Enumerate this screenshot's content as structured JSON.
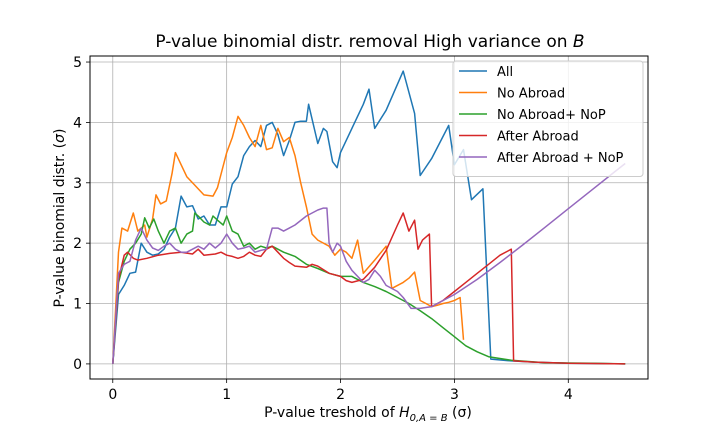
{
  "chart_data": {
    "type": "line",
    "title": "P-value binomial distr. removal High variance on ",
    "title_var": "B",
    "xlabel_text": "P-value treshold of ",
    "xlabel_math": "H",
    "xlabel_sub": "0,A = B",
    "xlabel_unit": " (σ)",
    "ylabel_text": "P-value binomial distr. (",
    "ylabel_math": "σ",
    "ylabel_close": ")",
    "xlim": [
      -0.2,
      4.7
    ],
    "ylim": [
      -0.25,
      5.1
    ],
    "x_ticks": [
      {
        "value": 0,
        "label": "0"
      },
      {
        "value": 1,
        "label": "1"
      },
      {
        "value": 2,
        "label": "2"
      },
      {
        "value": 3,
        "label": "3"
      },
      {
        "value": 4,
        "label": "4"
      }
    ],
    "y_ticks": [
      {
        "value": 0,
        "label": "0"
      },
      {
        "value": 1,
        "label": "1"
      },
      {
        "value": 2,
        "label": "2"
      },
      {
        "value": 3,
        "label": "3"
      },
      {
        "value": 4,
        "label": "4"
      },
      {
        "value": 5,
        "label": "5"
      }
    ],
    "grid": true,
    "legend_position": "top-right",
    "series": [
      {
        "name": "All",
        "color": "#1f77b4",
        "points": [
          [
            0,
            0
          ],
          [
            0.05,
            1.15
          ],
          [
            0.1,
            1.3
          ],
          [
            0.15,
            1.5
          ],
          [
            0.2,
            1.52
          ],
          [
            0.25,
            2.0
          ],
          [
            0.3,
            1.85
          ],
          [
            0.35,
            1.8
          ],
          [
            0.4,
            1.82
          ],
          [
            0.45,
            1.9
          ],
          [
            0.5,
            2.1
          ],
          [
            0.55,
            2.25
          ],
          [
            0.6,
            2.78
          ],
          [
            0.65,
            2.6
          ],
          [
            0.7,
            2.62
          ],
          [
            0.75,
            2.4
          ],
          [
            0.8,
            2.45
          ],
          [
            0.85,
            2.3
          ],
          [
            0.9,
            2.3
          ],
          [
            0.95,
            2.6
          ],
          [
            1.0,
            2.6
          ],
          [
            1.05,
            2.98
          ],
          [
            1.1,
            3.1
          ],
          [
            1.15,
            3.45
          ],
          [
            1.2,
            3.6
          ],
          [
            1.25,
            3.7
          ],
          [
            1.3,
            3.6
          ],
          [
            1.35,
            3.95
          ],
          [
            1.4,
            4.0
          ],
          [
            1.45,
            3.8
          ],
          [
            1.5,
            3.45
          ],
          [
            1.55,
            3.7
          ],
          [
            1.6,
            4.0
          ],
          [
            1.65,
            4.02
          ],
          [
            1.7,
            4.02
          ],
          [
            1.72,
            4.3
          ],
          [
            1.8,
            3.65
          ],
          [
            1.85,
            3.9
          ],
          [
            1.88,
            3.85
          ],
          [
            1.93,
            3.35
          ],
          [
            1.97,
            3.25
          ],
          [
            2.0,
            3.5
          ],
          [
            2.1,
            3.9
          ],
          [
            2.2,
            4.3
          ],
          [
            2.25,
            4.55
          ],
          [
            2.3,
            3.9
          ],
          [
            2.4,
            4.2
          ],
          [
            2.55,
            4.85
          ],
          [
            2.65,
            4.15
          ],
          [
            2.7,
            3.12
          ],
          [
            2.8,
            3.4
          ],
          [
            2.95,
            3.95
          ],
          [
            3.0,
            3.3
          ],
          [
            3.08,
            3.55
          ],
          [
            3.15,
            2.72
          ],
          [
            3.25,
            2.9
          ],
          [
            3.32,
            0.08
          ],
          [
            3.5,
            0.05
          ],
          [
            3.7,
            0.03
          ],
          [
            4.0,
            0.01
          ],
          [
            4.5,
            0.0
          ]
        ]
      },
      {
        "name": "No Abroad",
        "color": "#ff7f0e",
        "points": [
          [
            0,
            0
          ],
          [
            0.05,
            1.85
          ],
          [
            0.08,
            2.25
          ],
          [
            0.13,
            2.2
          ],
          [
            0.18,
            2.5
          ],
          [
            0.22,
            2.2
          ],
          [
            0.28,
            2.3
          ],
          [
            0.3,
            2.1
          ],
          [
            0.35,
            2.4
          ],
          [
            0.38,
            2.8
          ],
          [
            0.42,
            2.65
          ],
          [
            0.47,
            2.7
          ],
          [
            0.52,
            3.15
          ],
          [
            0.55,
            3.5
          ],
          [
            0.6,
            3.3
          ],
          [
            0.65,
            3.1
          ],
          [
            0.7,
            3.0
          ],
          [
            0.8,
            2.8
          ],
          [
            0.88,
            2.78
          ],
          [
            0.92,
            2.92
          ],
          [
            1.0,
            3.5
          ],
          [
            1.05,
            3.75
          ],
          [
            1.1,
            4.1
          ],
          [
            1.15,
            3.95
          ],
          [
            1.2,
            3.75
          ],
          [
            1.25,
            3.6
          ],
          [
            1.3,
            3.95
          ],
          [
            1.35,
            3.55
          ],
          [
            1.4,
            3.58
          ],
          [
            1.45,
            3.9
          ],
          [
            1.5,
            3.68
          ],
          [
            1.55,
            3.75
          ],
          [
            1.6,
            3.45
          ],
          [
            1.65,
            3.0
          ],
          [
            1.7,
            2.6
          ],
          [
            1.75,
            2.15
          ],
          [
            1.8,
            2.05
          ],
          [
            1.9,
            1.95
          ],
          [
            1.95,
            1.8
          ],
          [
            2.0,
            1.9
          ],
          [
            2.05,
            1.85
          ],
          [
            2.1,
            1.75
          ],
          [
            2.15,
            2.05
          ],
          [
            2.2,
            1.5
          ],
          [
            2.3,
            1.72
          ],
          [
            2.4,
            1.95
          ],
          [
            2.45,
            1.25
          ],
          [
            2.5,
            1.3
          ],
          [
            2.55,
            1.35
          ],
          [
            2.6,
            1.42
          ],
          [
            2.65,
            1.52
          ],
          [
            2.7,
            1.05
          ],
          [
            2.75,
            1.0
          ],
          [
            2.8,
            0.95
          ],
          [
            2.85,
            0.97
          ],
          [
            2.9,
            1.0
          ],
          [
            2.95,
            1.02
          ],
          [
            3.0,
            1.05
          ],
          [
            3.05,
            1.1
          ],
          [
            3.08,
            0.4
          ]
        ]
      },
      {
        "name": "No Abroad+ NoP",
        "color": "#2ca02c",
        "points": [
          [
            0,
            0
          ],
          [
            0.05,
            1.35
          ],
          [
            0.1,
            1.7
          ],
          [
            0.15,
            1.9
          ],
          [
            0.2,
            2.0
          ],
          [
            0.25,
            2.15
          ],
          [
            0.28,
            2.42
          ],
          [
            0.32,
            2.25
          ],
          [
            0.36,
            2.4
          ],
          [
            0.4,
            2.2
          ],
          [
            0.45,
            2.0
          ],
          [
            0.5,
            2.2
          ],
          [
            0.55,
            2.25
          ],
          [
            0.6,
            2.0
          ],
          [
            0.65,
            2.15
          ],
          [
            0.7,
            2.2
          ],
          [
            0.72,
            2.5
          ],
          [
            0.75,
            2.45
          ],
          [
            0.8,
            2.35
          ],
          [
            0.85,
            2.3
          ],
          [
            0.88,
            2.45
          ],
          [
            0.92,
            2.38
          ],
          [
            0.97,
            2.3
          ],
          [
            1.0,
            2.45
          ],
          [
            1.05,
            2.2
          ],
          [
            1.1,
            2.15
          ],
          [
            1.15,
            1.95
          ],
          [
            1.2,
            2.0
          ],
          [
            1.25,
            1.9
          ],
          [
            1.3,
            1.95
          ],
          [
            1.35,
            1.92
          ],
          [
            1.4,
            1.95
          ],
          [
            1.5,
            1.85
          ],
          [
            1.6,
            1.78
          ],
          [
            1.7,
            1.65
          ],
          [
            1.8,
            1.58
          ],
          [
            1.9,
            1.5
          ],
          [
            2.0,
            1.45
          ],
          [
            2.1,
            1.45
          ],
          [
            2.2,
            1.35
          ],
          [
            2.3,
            1.28
          ],
          [
            2.4,
            1.2
          ],
          [
            2.5,
            1.1
          ],
          [
            2.6,
            1.0
          ],
          [
            2.7,
            0.88
          ],
          [
            2.8,
            0.75
          ],
          [
            2.9,
            0.6
          ],
          [
            3.0,
            0.45
          ],
          [
            3.1,
            0.3
          ],
          [
            3.2,
            0.2
          ],
          [
            3.3,
            0.12
          ],
          [
            3.5,
            0.06
          ],
          [
            3.8,
            0.02
          ],
          [
            4.2,
            0.01
          ],
          [
            4.5,
            0.0
          ]
        ]
      },
      {
        "name": "After Abroad",
        "color": "#d62728",
        "points": [
          [
            0,
            0
          ],
          [
            0.05,
            1.4
          ],
          [
            0.1,
            1.8
          ],
          [
            0.13,
            1.85
          ],
          [
            0.18,
            1.75
          ],
          [
            0.22,
            1.72
          ],
          [
            0.3,
            1.75
          ],
          [
            0.4,
            1.8
          ],
          [
            0.5,
            1.83
          ],
          [
            0.6,
            1.85
          ],
          [
            0.7,
            1.82
          ],
          [
            0.75,
            1.9
          ],
          [
            0.8,
            1.8
          ],
          [
            0.9,
            1.82
          ],
          [
            0.95,
            1.85
          ],
          [
            1.0,
            1.8
          ],
          [
            1.05,
            1.78
          ],
          [
            1.1,
            1.75
          ],
          [
            1.15,
            1.78
          ],
          [
            1.2,
            1.85
          ],
          [
            1.25,
            1.8
          ],
          [
            1.3,
            1.78
          ],
          [
            1.35,
            1.9
          ],
          [
            1.4,
            1.95
          ],
          [
            1.45,
            1.85
          ],
          [
            1.5,
            1.75
          ],
          [
            1.55,
            1.68
          ],
          [
            1.6,
            1.62
          ],
          [
            1.7,
            1.6
          ],
          [
            1.75,
            1.65
          ],
          [
            1.8,
            1.62
          ],
          [
            1.9,
            1.5
          ],
          [
            2.0,
            1.45
          ],
          [
            2.05,
            1.38
          ],
          [
            2.1,
            1.35
          ],
          [
            2.2,
            1.4
          ],
          [
            2.3,
            1.6
          ],
          [
            2.4,
            1.88
          ],
          [
            2.5,
            2.3
          ],
          [
            2.55,
            2.5
          ],
          [
            2.6,
            2.2
          ],
          [
            2.65,
            2.38
          ],
          [
            2.68,
            1.9
          ],
          [
            2.72,
            2.05
          ],
          [
            2.78,
            2.15
          ],
          [
            2.8,
            0.95
          ],
          [
            2.9,
            1.05
          ],
          [
            3.0,
            1.2
          ],
          [
            3.1,
            1.35
          ],
          [
            3.2,
            1.5
          ],
          [
            3.3,
            1.65
          ],
          [
            3.4,
            1.8
          ],
          [
            3.5,
            1.9
          ],
          [
            3.52,
            0.05
          ],
          [
            3.7,
            0.03
          ],
          [
            4.0,
            0.01
          ],
          [
            4.5,
            0.0
          ]
        ]
      },
      {
        "name": "After Abroad + NoP",
        "color": "#9467bd",
        "points": [
          [
            0,
            0
          ],
          [
            0.05,
            1.5
          ],
          [
            0.1,
            1.65
          ],
          [
            0.15,
            1.7
          ],
          [
            0.2,
            2.05
          ],
          [
            0.25,
            2.25
          ],
          [
            0.3,
            2.05
          ],
          [
            0.35,
            1.92
          ],
          [
            0.4,
            1.88
          ],
          [
            0.45,
            1.95
          ],
          [
            0.5,
            2.0
          ],
          [
            0.55,
            1.9
          ],
          [
            0.6,
            1.85
          ],
          [
            0.65,
            1.85
          ],
          [
            0.7,
            1.9
          ],
          [
            0.75,
            1.95
          ],
          [
            0.8,
            1.9
          ],
          [
            0.85,
            2.0
          ],
          [
            0.9,
            1.92
          ],
          [
            0.95,
            2.0
          ],
          [
            1.0,
            2.15
          ],
          [
            1.05,
            2.0
          ],
          [
            1.1,
            1.9
          ],
          [
            1.15,
            1.92
          ],
          [
            1.2,
            1.95
          ],
          [
            1.25,
            1.85
          ],
          [
            1.3,
            1.88
          ],
          [
            1.35,
            1.9
          ],
          [
            1.4,
            2.25
          ],
          [
            1.45,
            2.25
          ],
          [
            1.5,
            2.2
          ],
          [
            1.55,
            2.25
          ],
          [
            1.6,
            2.3
          ],
          [
            1.7,
            2.45
          ],
          [
            1.8,
            2.55
          ],
          [
            1.85,
            2.58
          ],
          [
            1.88,
            2.58
          ],
          [
            1.9,
            2.0
          ],
          [
            1.93,
            1.85
          ],
          [
            1.97,
            2.0
          ],
          [
            2.0,
            1.95
          ],
          [
            2.05,
            1.7
          ],
          [
            2.1,
            1.55
          ],
          [
            2.2,
            1.35
          ],
          [
            2.25,
            1.4
          ],
          [
            2.3,
            1.55
          ],
          [
            2.35,
            1.45
          ],
          [
            2.4,
            1.3
          ],
          [
            2.5,
            1.2
          ],
          [
            2.55,
            1.1
          ],
          [
            2.62,
            0.92
          ],
          [
            2.7,
            0.92
          ],
          [
            2.8,
            0.95
          ],
          [
            3.0,
            1.15
          ],
          [
            3.2,
            1.4
          ],
          [
            3.4,
            1.68
          ],
          [
            3.6,
            1.97
          ],
          [
            3.8,
            2.27
          ],
          [
            4.0,
            2.57
          ],
          [
            4.2,
            2.87
          ],
          [
            4.4,
            3.17
          ],
          [
            4.5,
            3.32
          ]
        ]
      }
    ]
  }
}
